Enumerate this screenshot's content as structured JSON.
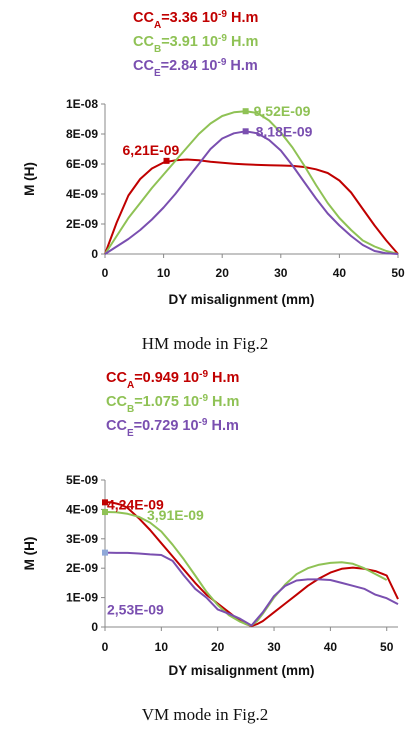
{
  "chart_data": [
    {
      "type": "line",
      "legend": [
        {
          "prefix": "CC",
          "sub": "A",
          "text": "=3.36 10",
          "sup": "-9",
          "unit": " H.m",
          "color": "#c00000"
        },
        {
          "prefix": "CC",
          "sub": "B",
          "text": "=3.91 10",
          "sup": "-9",
          "unit": " H.m",
          "color": "#8fc255"
        },
        {
          "prefix": "CC",
          "sub": "E",
          "text": "=2.84 10",
          "sup": "-9",
          "unit": " H.m",
          "color": "#7a4fb0"
        }
      ],
      "xlabel": "DY misalignment (mm)",
      "ylabel": "M (H)",
      "xlim": [
        0,
        50
      ],
      "ylim": [
        0,
        1e-08
      ],
      "xticks": [
        "0",
        "10",
        "20",
        "30",
        "40",
        "50"
      ],
      "yticks": [
        "0",
        "2E-09",
        "4E-09",
        "6E-09",
        "8E-09",
        "1E-08"
      ],
      "grid": false,
      "series": [
        {
          "color": "#c00000",
          "x": [
            0,
            2,
            4,
            6,
            8,
            10,
            12,
            14,
            16,
            18,
            20,
            22,
            24,
            26,
            28,
            30,
            32,
            34,
            36,
            38,
            40,
            42,
            44,
            46,
            48,
            50
          ],
          "y": [
            0,
            2.1e-09,
            3.9e-09,
            5e-09,
            5.7e-09,
            6.1e-09,
            6.25e-09,
            6.3e-09,
            6.25e-09,
            6.15e-09,
            6.08e-09,
            6.02e-09,
            5.97e-09,
            5.94e-09,
            5.92e-09,
            5.9e-09,
            5.87e-09,
            5.8e-09,
            5.65e-09,
            5.4e-09,
            4.9e-09,
            4.1e-09,
            3e-09,
            1.9e-09,
            9e-10,
            0
          ]
        },
        {
          "color": "#8fc255",
          "x": [
            0,
            2,
            4,
            6,
            8,
            10,
            12,
            14,
            16,
            18,
            20,
            22,
            24,
            26,
            28,
            30,
            32,
            34,
            36,
            38,
            40,
            42,
            44,
            46,
            48,
            50
          ],
          "y": [
            0,
            1.2e-09,
            2.4e-09,
            3.4e-09,
            4.4e-09,
            5.3e-09,
            6.2e-09,
            7.1e-09,
            8e-09,
            8.7e-09,
            9.2e-09,
            9.45e-09,
            9.52e-09,
            9.4e-09,
            8.9e-09,
            8.1e-09,
            7.1e-09,
            5.9e-09,
            4.6e-09,
            3.4e-09,
            2.4e-09,
            1.6e-09,
            9e-10,
            5e-10,
            2e-10,
            0
          ]
        },
        {
          "color": "#7a4fb0",
          "x": [
            0,
            2,
            4,
            6,
            8,
            10,
            12,
            14,
            16,
            18,
            20,
            22,
            24,
            26,
            28,
            30,
            32,
            34,
            36,
            38,
            40,
            42,
            44,
            46,
            48,
            50
          ],
          "y": [
            0,
            5e-10,
            1e-09,
            1.6e-09,
            2.3e-09,
            3.1e-09,
            4e-09,
            5e-09,
            6e-09,
            7e-09,
            7.7e-09,
            8.05e-09,
            8.18e-09,
            8.05e-09,
            7.6e-09,
            6.9e-09,
            5.9e-09,
            4.8e-09,
            3.7e-09,
            2.7e-09,
            1.9e-09,
            1.2e-09,
            6e-10,
            2e-10,
            5e-11,
            0
          ]
        }
      ],
      "markers": [
        {
          "x": 10.5,
          "y": 6.21e-09,
          "color": "#c00000",
          "label": "6,21E-09"
        },
        {
          "x": 24,
          "y": 9.52e-09,
          "color": "#8fc255",
          "label": "9,52E-09"
        },
        {
          "x": 24,
          "y": 8.18e-09,
          "color": "#7a4fb0",
          "label": "8,18E-09"
        }
      ],
      "caption": "HM mode in Fig.2"
    },
    {
      "type": "line",
      "legend": [
        {
          "prefix": "CC",
          "sub": "A",
          "text": "=0.949 10",
          "sup": "-9",
          "unit": " H.m",
          "color": "#c00000"
        },
        {
          "prefix": "CC",
          "sub": "B",
          "text": "=1.075 10",
          "sup": "-9",
          "unit": " H.m",
          "color": "#8fc255"
        },
        {
          "prefix": "CC",
          "sub": "E",
          "text": "=0.729 10",
          "sup": "-9",
          "unit": " H.m",
          "color": "#7a4fb0"
        }
      ],
      "xlabel": "DY misalignment (mm)",
      "ylabel": "M (H)",
      "xlim": [
        0,
        52
      ],
      "ylim": [
        0,
        5e-09
      ],
      "xticks": [
        "0",
        "10",
        "20",
        "30",
        "40",
        "50"
      ],
      "yticks": [
        "0",
        "1E-09",
        "2E-09",
        "3E-09",
        "4E-09",
        "5E-09"
      ],
      "grid": false,
      "series": [
        {
          "color": "#c00000",
          "x": [
            0,
            1,
            2,
            3,
            4,
            6,
            8,
            10,
            12,
            14,
            16,
            18,
            20,
            22,
            24,
            25,
            26,
            27,
            28,
            30,
            32,
            34,
            36,
            38,
            40,
            42,
            44,
            46,
            48,
            50,
            52
          ],
          "y": [
            4.24e-09,
            4.24e-09,
            4.2e-09,
            4.15e-09,
            4.05e-09,
            3.7e-09,
            3.3e-09,
            2.85e-09,
            2.4e-09,
            1.95e-09,
            1.5e-09,
            1.1e-09,
            8e-10,
            5e-10,
            2e-10,
            1e-10,
            3e-11,
            1e-10,
            2e-10,
            5e-10,
            8e-10,
            1.1e-09,
            1.4e-09,
            1.65e-09,
            1.85e-09,
            1.98e-09,
            2.02e-09,
            1.98e-09,
            1.9e-09,
            1.75e-09,
            9.5e-10
          ]
        },
        {
          "color": "#8fc255",
          "x": [
            0,
            2,
            4,
            6,
            8,
            10,
            12,
            14,
            16,
            18,
            20,
            22,
            24,
            25,
            26,
            27,
            28,
            30,
            32,
            34,
            36,
            38,
            40,
            42,
            44,
            46,
            48,
            50
          ],
          "y": [
            3.91e-09,
            3.9e-09,
            3.85e-09,
            3.75e-09,
            3.55e-09,
            3.25e-09,
            2.8e-09,
            2.3e-09,
            1.75e-09,
            1.2e-09,
            7.5e-10,
            4e-10,
            1.8e-10,
            1e-10,
            5e-11,
            2e-10,
            4.5e-10,
            1e-09,
            1.45e-09,
            1.8e-09,
            2e-09,
            2.12e-09,
            2.18e-09,
            2.2e-09,
            2.15e-09,
            2e-09,
            1.8e-09,
            1.6e-09
          ]
        },
        {
          "color": "#7a4fb0",
          "x": [
            0,
            2,
            4,
            6,
            8,
            10,
            12,
            14,
            16,
            18,
            20,
            22,
            24,
            26,
            28,
            30,
            32,
            34,
            36,
            38,
            40,
            42,
            44,
            46,
            48,
            50,
            52
          ],
          "y": [
            2.53e-09,
            2.52e-09,
            2.52e-09,
            2.5e-09,
            2.47e-09,
            2.45e-09,
            2.25e-09,
            1.75e-09,
            1.3e-09,
            1e-09,
            6e-10,
            4.5e-10,
            2.8e-10,
            5e-11,
            5e-10,
            1.05e-09,
            1.4e-09,
            1.58e-09,
            1.62e-09,
            1.62e-09,
            1.6e-09,
            1.5e-09,
            1.4e-09,
            1.3e-09,
            1.1e-09,
            9.8e-10,
            7.8e-10
          ]
        }
      ],
      "markers": [
        {
          "x": 0,
          "y": 4.24e-09,
          "color": "#c00000",
          "label": "4,24E-09"
        },
        {
          "x": 0,
          "y": 3.91e-09,
          "color": "#8fc255",
          "label": "3,91E-09"
        },
        {
          "x": 0,
          "y": 2.53e-09,
          "color": "#8fa8d8",
          "label": "2,53E-09"
        }
      ],
      "caption": "VM mode in Fig.2"
    }
  ]
}
